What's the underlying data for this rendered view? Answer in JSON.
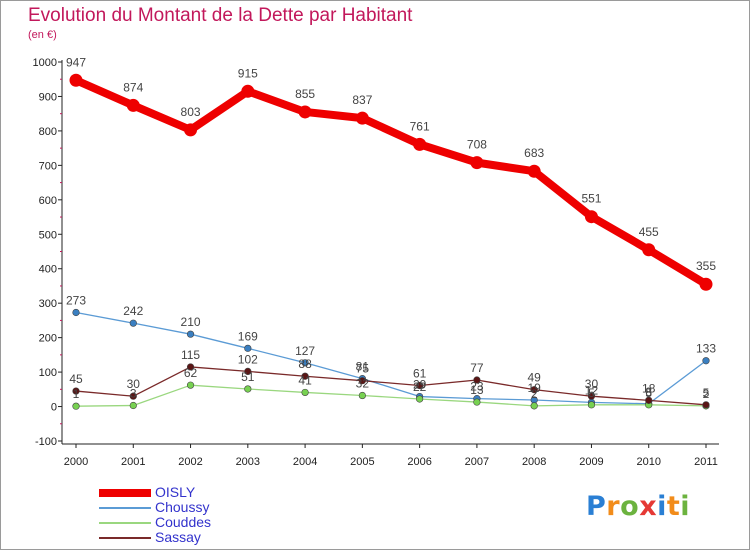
{
  "header": {
    "title": "Evolution du Montant de la Dette par Habitant",
    "subtitle": "(en €)"
  },
  "logo": {
    "text": "Proxiti",
    "colors": [
      "#2a7fd4",
      "#f28c1a",
      "#6cb33f",
      "#e53935",
      "#2a7fd4",
      "#f28c1a",
      "#6cb33f"
    ]
  },
  "chart_data": {
    "type": "line",
    "categories": [
      "2000",
      "2001",
      "2002",
      "2003",
      "2004",
      "2005",
      "2006",
      "2007",
      "2008",
      "2009",
      "2010",
      "2011"
    ],
    "ylim": [
      -100,
      1000
    ],
    "yticks": [
      -100,
      0,
      100,
      200,
      300,
      400,
      500,
      600,
      700,
      800,
      900,
      1000
    ],
    "grid": false,
    "legend_position": "bottom-left",
    "series": [
      {
        "name": "OISLY",
        "values": [
          947,
          874,
          803,
          915,
          855,
          837,
          761,
          708,
          683,
          551,
          455,
          355
        ],
        "color": "#ee0000",
        "marker": "#ee0000"
      },
      {
        "name": "Choussy",
        "values": [
          273,
          242,
          210,
          169,
          127,
          81,
          29,
          23,
          19,
          12,
          8,
          133
        ],
        "color": "#5b9bd5",
        "marker": "#3a7fc1"
      },
      {
        "name": "Couddes",
        "values": [
          1,
          3,
          62,
          51,
          41,
          32,
          22,
          13,
          2,
          5,
          5,
          2
        ],
        "color": "#9ad77f",
        "marker": "#77d151"
      },
      {
        "name": "Sassay",
        "values": [
          45,
          30,
          115,
          102,
          88,
          75,
          61,
          77,
          49,
          30,
          18,
          5
        ],
        "color": "#7a2a2a",
        "marker": "#5a1515"
      }
    ]
  }
}
